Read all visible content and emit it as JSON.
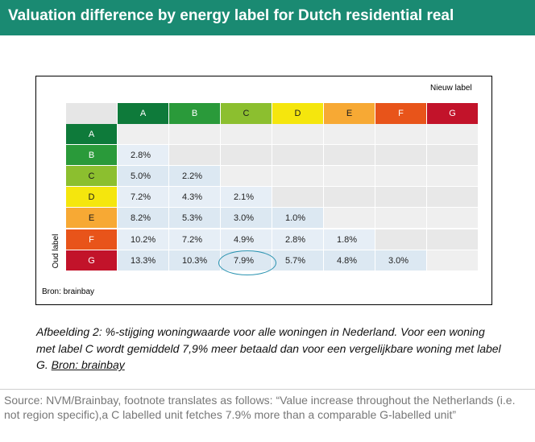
{
  "header": {
    "title": "Valuation difference by energy label for Dutch residential real"
  },
  "figure": {
    "new_label_legend": "Nieuw label",
    "old_label_axis": "Oud label",
    "source": "Bron: brainbay",
    "labels": [
      "A",
      "B",
      "C",
      "D",
      "E",
      "F",
      "G"
    ],
    "label_colors": {
      "A": "#0e7a3a",
      "B": "#2a9a3a",
      "C": "#8cbf2f",
      "D": "#f5e60d",
      "E": "#f7a934",
      "F": "#e8541a",
      "G": "#c2132a"
    },
    "rows": [
      {
        "old": "A",
        "values": []
      },
      {
        "old": "B",
        "values": [
          "2.8%"
        ]
      },
      {
        "old": "C",
        "values": [
          "5.0%",
          "2.2%"
        ]
      },
      {
        "old": "D",
        "values": [
          "7.2%",
          "4.3%",
          "2.1%"
        ]
      },
      {
        "old": "E",
        "values": [
          "8.2%",
          "5.3%",
          "3.0%",
          "1.0%"
        ]
      },
      {
        "old": "F",
        "values": [
          "10.2%",
          "7.2%",
          "4.9%",
          "2.8%",
          "1.8%"
        ]
      },
      {
        "old": "G",
        "values": [
          "13.3%",
          "10.3%",
          "7.9%",
          "5.7%",
          "4.8%",
          "3.0%"
        ]
      }
    ],
    "highlight": "7.9%"
  },
  "caption": {
    "text": "Afbeelding 2: %-stijging woningwaarde voor alle woningen in Nederland. Voor een woning met label C wordt gemiddeld 7,9% meer betaald dan voor een vergelijkbare woning met label G.",
    "source_link": "Bron: brainbay"
  },
  "footnote": {
    "text": "Source: NVM/Brainbay, footnote translates as follows: “Value increase throughout the Netherlands (i.e. not region specific),a C labelled unit fetches 7.9% more than a comparable G-labelled unit”"
  }
}
